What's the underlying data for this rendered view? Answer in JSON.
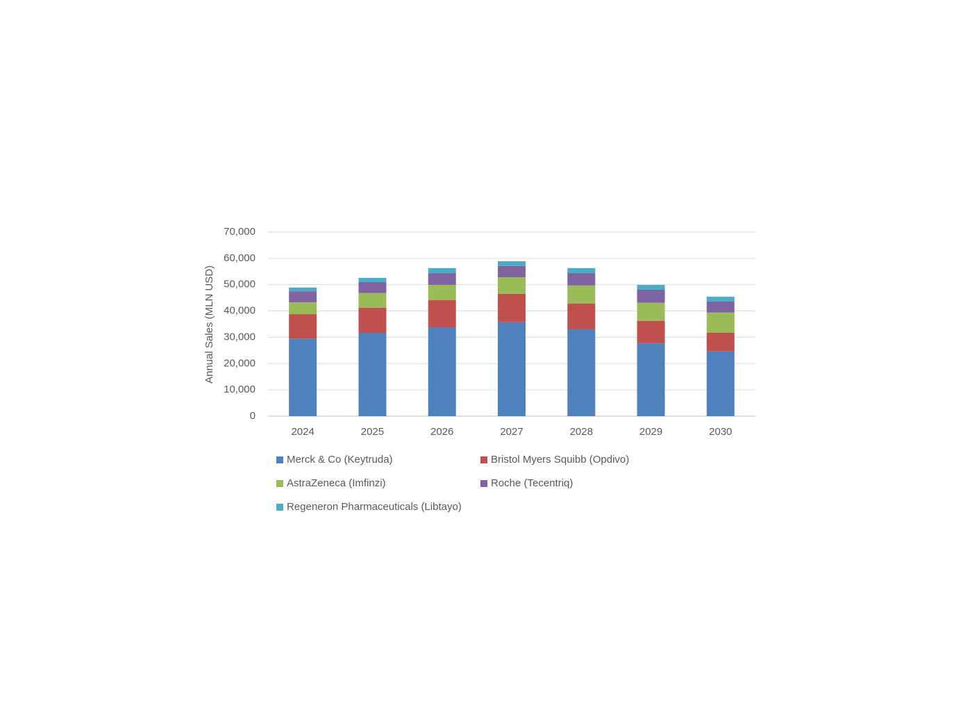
{
  "chart_data": {
    "type": "stacked_bar",
    "y_label": "Annual Sales (MLN USD)",
    "categories": [
      "2024",
      "2025",
      "2026",
      "2027",
      "2028",
      "2029",
      "2030"
    ],
    "series": [
      {
        "name": "Merck & Co (Keytruda)",
        "color": "#4f81bd",
        "values": [
          29500,
          31700,
          33800,
          35700,
          33000,
          27700,
          24600
        ]
      },
      {
        "name": "Bristol Myers Squibb (Opdivo)",
        "color": "#c0504d",
        "values": [
          9300,
          9500,
          10300,
          10800,
          9800,
          8500,
          7100
        ]
      },
      {
        "name": "AstraZeneca (Imfinzi)",
        "color": "#9bbb59",
        "values": [
          4500,
          5600,
          5800,
          6300,
          6900,
          6900,
          7700
        ]
      },
      {
        "name": "Roche (Tecentriq)",
        "color": "#8064a2",
        "values": [
          4200,
          4200,
          4500,
          4300,
          4700,
          5000,
          4200
        ]
      },
      {
        "name": "Regeneron Pharmaceuticals (Libtayo)",
        "color": "#4bacc6",
        "values": [
          1400,
          1600,
          1900,
          1800,
          1900,
          1800,
          1800
        ]
      }
    ],
    "ylim": [
      0,
      70000
    ],
    "yticks": [
      0,
      {
        "value": 10000,
        "label": "10,000"
      },
      {
        "value": 20000,
        "label": "20,000"
      },
      {
        "value": 30000,
        "label": "30,000"
      },
      {
        "value": 40000,
        "label": "40,000"
      },
      {
        "value": 50000,
        "label": "50,000"
      },
      {
        "value": 60000,
        "label": "60,000"
      },
      {
        "value": 70000,
        "label": "70,000"
      }
    ],
    "grid": true
  }
}
